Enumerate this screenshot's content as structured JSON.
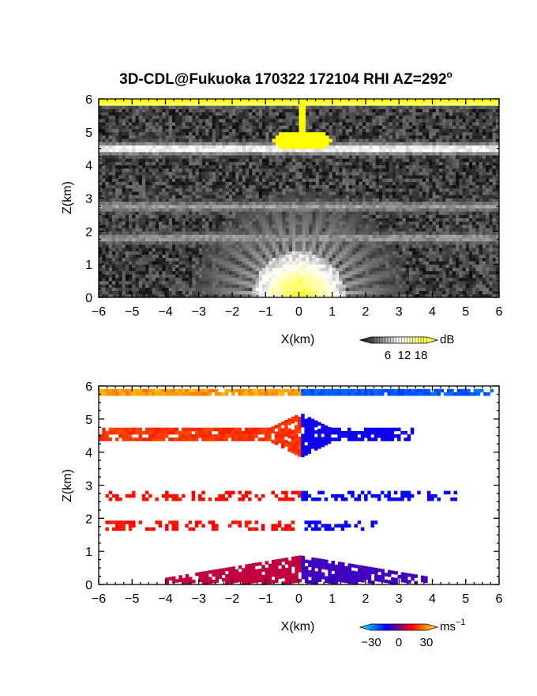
{
  "title": "3D-CDL@Fukuoka 170322 172104 RHI AZ=292",
  "title_degree": "o",
  "chart_data": [
    {
      "type": "heatmap",
      "quantity": "SNR",
      "xlabel": "X(km)",
      "ylabel": "Z(km)",
      "xlim": [
        -6,
        6
      ],
      "ylim": [
        0,
        6
      ],
      "xticks": [
        -6,
        -5,
        -4,
        -3,
        -2,
        -1,
        0,
        1,
        2,
        3,
        4,
        5,
        6
      ],
      "yticks": [
        0,
        1,
        2,
        3,
        4,
        5,
        6
      ],
      "colorbar": {
        "unit": "dB",
        "range": [
          0,
          20
        ],
        "ticks": [
          6,
          12,
          18
        ],
        "colors": [
          "#000000",
          "#ffffff",
          "#ffff00"
        ]
      },
      "features": [
        {
          "kind": "layer",
          "z": 5.92,
          "value": 22,
          "x_extent": [
            -6,
            6
          ]
        },
        {
          "kind": "layer",
          "z": 4.5,
          "value": 9,
          "x_extent": [
            -6,
            6
          ]
        },
        {
          "kind": "blob",
          "x": 0.1,
          "z": 4.75,
          "value": 22
        },
        {
          "kind": "layer",
          "z": 2.75,
          "value": 5,
          "x_extent": [
            -6,
            6
          ]
        },
        {
          "kind": "layer",
          "z": 1.8,
          "value": 5,
          "x_extent": [
            -6,
            6
          ]
        },
        {
          "kind": "near-field",
          "x": 0,
          "z": 0,
          "value": 17
        }
      ]
    },
    {
      "type": "heatmap",
      "quantity": "Doppler velocity",
      "xlabel": "X(km)",
      "ylabel": "Z(km)",
      "xlim": [
        -6,
        6
      ],
      "ylim": [
        0,
        6
      ],
      "xticks": [
        -6,
        -5,
        -4,
        -3,
        -2,
        -1,
        0,
        1,
        2,
        3,
        4,
        5,
        6
      ],
      "yticks": [
        0,
        1,
        2,
        3,
        4,
        5,
        6
      ],
      "colorbar": {
        "unit": "ms",
        "unit_exponent": "-1",
        "range": [
          -30,
          30
        ],
        "ticks": [
          -30,
          0,
          30
        ],
        "colors": [
          "#00ffff",
          "#0000ff",
          "#ff0000",
          "#ffff00"
        ]
      },
      "features": [
        {
          "kind": "layer",
          "z": 5.88,
          "x_extent": [
            -6,
            6
          ],
          "velocity_left": 22,
          "velocity_right": -17
        },
        {
          "kind": "layer",
          "z": 4.55,
          "x_extent": [
            -6,
            3.5
          ],
          "velocity_left": 14,
          "velocity_right": -9
        },
        {
          "kind": "layer",
          "z": 2.7,
          "x_extent": [
            -5.8,
            4.8
          ],
          "velocity_left": 11,
          "velocity_right": -10
        },
        {
          "kind": "layer",
          "z": 1.8,
          "x_extent": [
            -5.8,
            2.5
          ],
          "velocity_left": 11,
          "velocity_right": -10
        },
        {
          "kind": "near-field",
          "z": 0.35,
          "x_extent": [
            -4,
            4
          ],
          "velocity_left": 5,
          "velocity_right": -5
        }
      ]
    }
  ]
}
